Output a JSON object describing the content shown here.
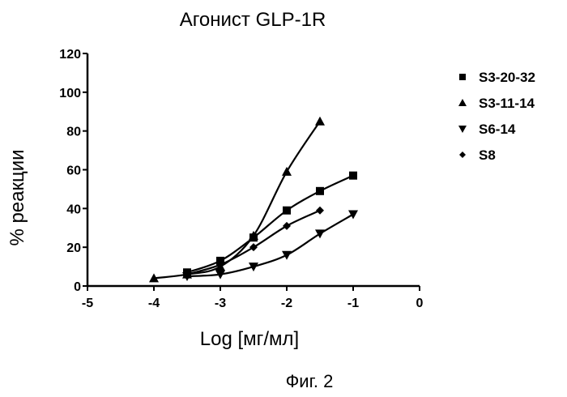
{
  "chart_data": {
    "type": "line",
    "title": "Агонист GLP-1R",
    "xlabel": "Log [мг/мл]",
    "ylabel": "% реакции",
    "xlim": [
      -5,
      0
    ],
    "ylim": [
      0,
      120
    ],
    "x_ticks": [
      -5,
      -4,
      -3,
      -2,
      -1,
      0
    ],
    "y_ticks": [
      0,
      20,
      40,
      60,
      80,
      100,
      120
    ],
    "x_tick_labels": [
      "-5",
      "-4",
      "-3",
      "-2",
      "-1",
      "0"
    ],
    "y_tick_labels": [
      "0",
      "20",
      "40",
      "60",
      "80",
      "100",
      "120"
    ],
    "grid": false,
    "legend_position": "top-right",
    "series": [
      {
        "name": "S3-20-32",
        "marker": "square",
        "x": [
          -3.5,
          -3.0,
          -2.5,
          -2.0,
          -1.5,
          -1.0
        ],
        "y": [
          7,
          13,
          25,
          39,
          49,
          57
        ]
      },
      {
        "name": "S3-11-14",
        "marker": "triangle-up",
        "x": [
          -4.0,
          -3.5,
          -3.0,
          -2.5,
          -2.0,
          -1.5
        ],
        "y": [
          4,
          6,
          10,
          26,
          59,
          85
        ]
      },
      {
        "name": "S6-14",
        "marker": "triangle-down",
        "x": [
          -3.5,
          -3.0,
          -2.5,
          -2.0,
          -1.5,
          -1.0
        ],
        "y": [
          5,
          6,
          10,
          16,
          27,
          37
        ]
      },
      {
        "name": "S8",
        "marker": "diamond",
        "x": [
          -3.5,
          -3.0,
          -2.5,
          -2.0,
          -1.5
        ],
        "y": [
          6,
          11,
          20,
          31,
          39
        ]
      }
    ]
  },
  "caption": "Фиг. 2"
}
